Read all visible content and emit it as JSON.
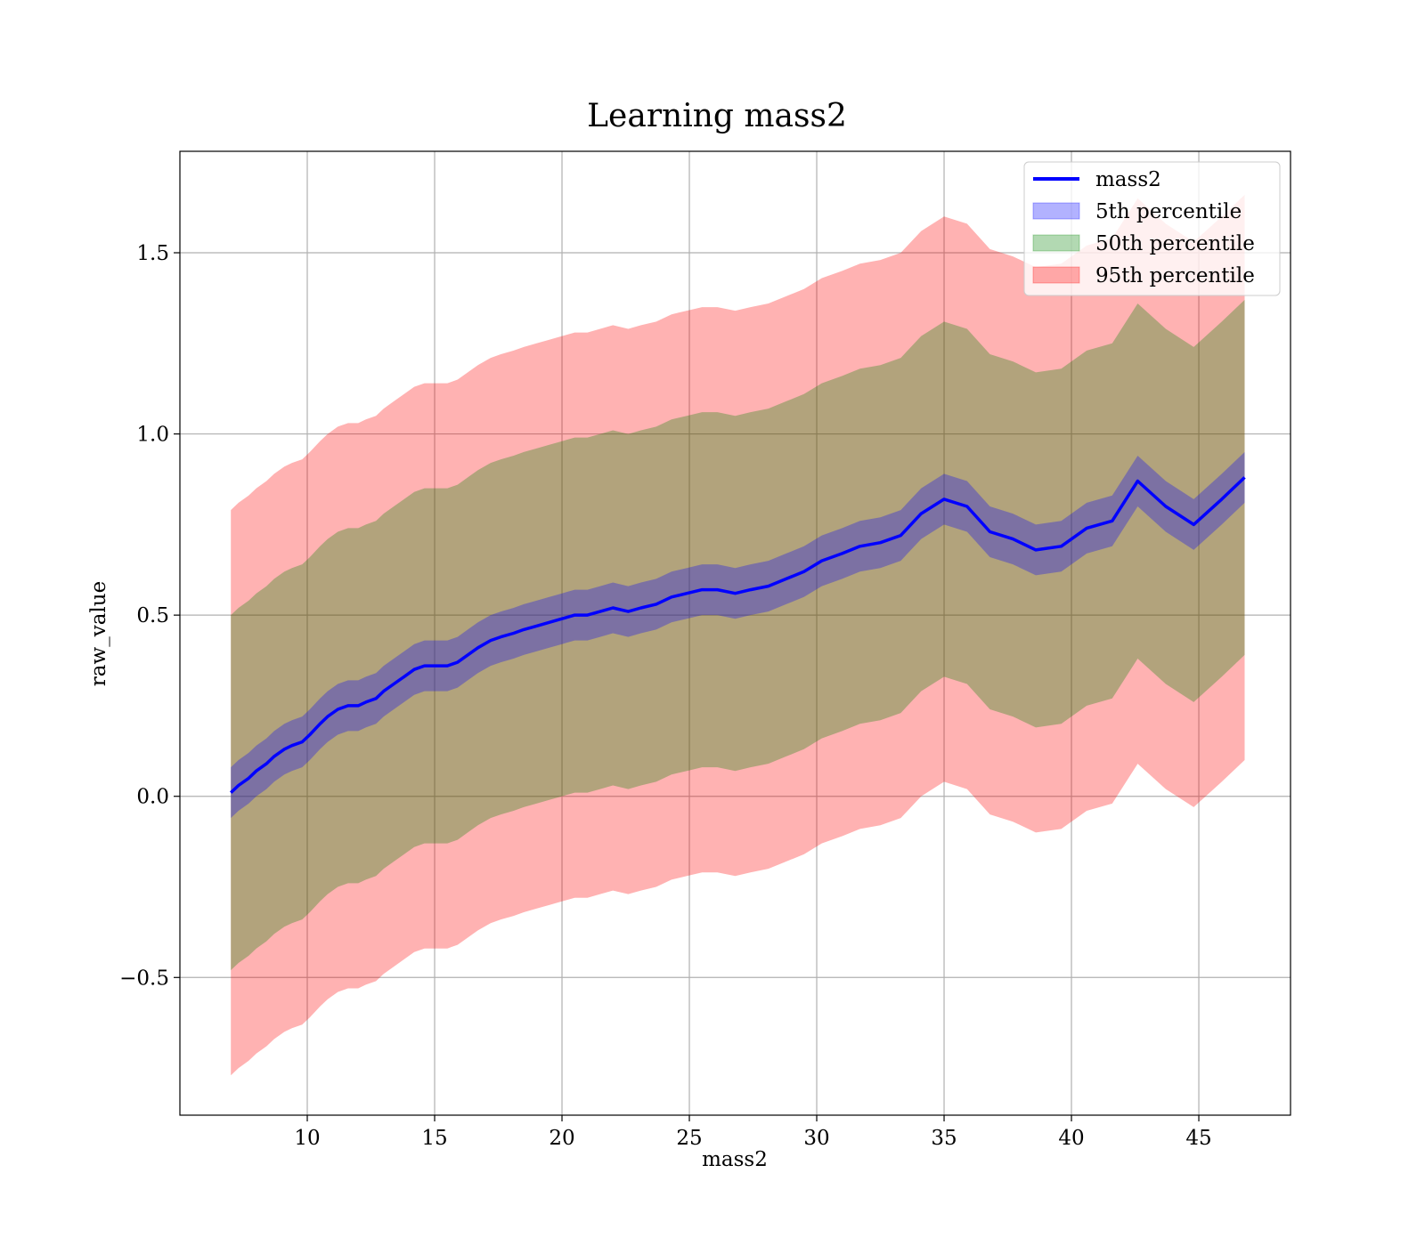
{
  "chart_data": {
    "type": "area",
    "title": "Learning mass2",
    "xlabel": "mass2",
    "ylabel": "raw_value",
    "xlim": [
      5.0,
      48.6
    ],
    "ylim": [
      -0.88,
      1.78
    ],
    "xticks": [
      10,
      15,
      20,
      25,
      30,
      35,
      40,
      45
    ],
    "xtick_labels": [
      "10",
      "15",
      "20",
      "25",
      "30",
      "35",
      "40",
      "45"
    ],
    "yticks": [
      -0.5,
      0.0,
      0.5,
      1.0,
      1.5
    ],
    "ytick_labels": [
      "−0.5",
      "0.0",
      "0.5",
      "1.0",
      "1.5"
    ],
    "grid": true,
    "legend_position": "top-right",
    "x": [
      7.0,
      7.3,
      7.7,
      8.0,
      8.4,
      8.7,
      9.1,
      9.4,
      9.8,
      10.1,
      10.5,
      10.8,
      11.2,
      11.6,
      12.0,
      12.3,
      12.7,
      13.0,
      13.4,
      13.8,
      14.2,
      14.6,
      15.0,
      15.5,
      15.9,
      16.3,
      16.7,
      17.2,
      17.6,
      18.1,
      18.5,
      19.0,
      19.5,
      20.0,
      20.5,
      21.0,
      21.5,
      22.0,
      22.6,
      23.1,
      23.7,
      24.3,
      24.9,
      25.5,
      26.1,
      26.8,
      27.4,
      28.1,
      28.8,
      29.5,
      30.2,
      31.0,
      31.7,
      32.5,
      33.3,
      34.1,
      35.0,
      35.9,
      36.8,
      37.7,
      38.6,
      39.6,
      40.6,
      41.6,
      42.6,
      43.7,
      44.8,
      45.9,
      46.8
    ],
    "y": [
      0.01,
      0.03,
      0.05,
      0.07,
      0.09,
      0.11,
      0.13,
      0.14,
      0.15,
      0.17,
      0.2,
      0.22,
      0.24,
      0.25,
      0.25,
      0.26,
      0.27,
      0.29,
      0.31,
      0.33,
      0.35,
      0.36,
      0.36,
      0.36,
      0.37,
      0.39,
      0.41,
      0.43,
      0.44,
      0.45,
      0.46,
      0.47,
      0.48,
      0.49,
      0.5,
      0.5,
      0.51,
      0.52,
      0.51,
      0.52,
      0.53,
      0.55,
      0.56,
      0.57,
      0.57,
      0.56,
      0.57,
      0.58,
      0.6,
      0.62,
      0.65,
      0.67,
      0.69,
      0.7,
      0.72,
      0.78,
      0.82,
      0.8,
      0.73,
      0.71,
      0.68,
      0.69,
      0.74,
      0.76,
      0.87,
      0.8,
      0.75,
      0.82,
      0.88
    ],
    "series": [
      {
        "name": "mass2",
        "kind": "line",
        "color": "#0000ff"
      },
      {
        "name": "5th percentile",
        "kind": "band",
        "half_width": 0.07,
        "color": "#0000ff",
        "alpha": 0.3
      },
      {
        "name": "50th percentile",
        "kind": "band",
        "half_width": 0.49,
        "color": "#008000",
        "alpha": 0.3
      },
      {
        "name": "95th percentile",
        "kind": "band",
        "half_width": 0.78,
        "color": "#ff0000",
        "alpha": 0.3
      }
    ]
  }
}
